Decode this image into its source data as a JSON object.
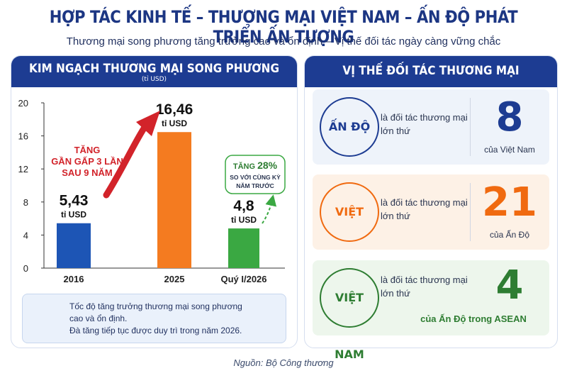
{
  "title": "HỢP TÁC KINH TẾ – THƯƠNG MẠI VIỆT NAM – ẤN ĐỘ PHÁT TRIỂN ẤN TƯỢNG",
  "subtitle": "Thương mại song phương tăng trưởng cao và ổn định – Vị thế đối tác ngày càng vững chắc",
  "left_panel": {
    "header": "KIM NGẠCH THƯƠNG MẠI SONG PHƯƠNG",
    "unit": "(tỉ USD)",
    "growth_arrow_text": [
      "TĂNG",
      "GẦN GẤP 3 LẦN",
      "SAU 9 NĂM"
    ],
    "yoy_bubble": {
      "title_prefix": "TĂNG ",
      "percent": "28%",
      "line2": "SO VỚI CÙNG KỲ",
      "line3": "NĂM TRƯỚC"
    },
    "growth_note": [
      "Tốc độ tăng trưởng thương mại song phương",
      "cao và ổn định.",
      "Đà tăng tiếp tục được duy trì trong năm 2026."
    ]
  },
  "chart_data": {
    "type": "bar",
    "categories": [
      "2016",
      "2025",
      "Quý I/2026"
    ],
    "values": [
      5.43,
      16.46,
      4.8
    ],
    "value_labels": [
      "5,43",
      "16,46",
      "4,8"
    ],
    "value_unit": "tỉ USD",
    "bar_colors": [
      "#1d55b5",
      "#f47b20",
      "#3aa842"
    ],
    "ylim": [
      0,
      20
    ],
    "yticks": [
      0,
      4,
      8,
      12,
      16,
      20
    ],
    "ylabel": "",
    "xlabel": "",
    "grid": false
  },
  "right_panel": {
    "header": "VỊ THẾ ĐỐI TÁC THƯƠNG MẠI",
    "cards": [
      {
        "name": "ẤN ĐỘ",
        "desc_1": "là đối tác thương mại",
        "desc_2": "lớn thứ",
        "rank": "8",
        "caption": "của Việt Nam",
        "color": "#1d3c92"
      },
      {
        "name": "VIỆT NAM",
        "desc_1": "là đối tác thương mại",
        "desc_2": "lớn thứ",
        "rank": "21",
        "caption": "của Ấn Độ",
        "color": "#f06a10"
      },
      {
        "name": "VIỆT NAM",
        "desc_1": "là đối tác thương mại",
        "desc_2": "lớn thứ",
        "rank": "4",
        "caption": "của Ấn Độ trong ASEAN",
        "color": "#2e7d32"
      }
    ]
  },
  "source": "Nguồn: Bộ Công thương",
  "colors": {
    "navy": "#1d3c92",
    "orange": "#f47b20",
    "green": "#3aa842",
    "red": "#d2232a"
  },
  "icons": [
    "trend-chart-icon",
    "growth-arrow-icon",
    "dashed-arrow-icon"
  ]
}
